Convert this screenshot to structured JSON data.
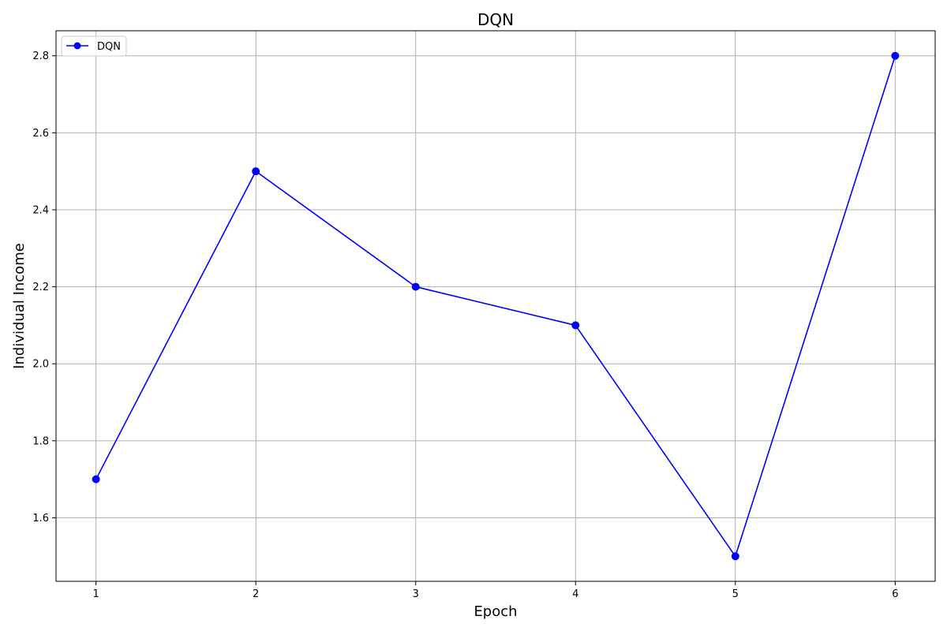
{
  "chart_data": {
    "type": "line",
    "title": "DQN",
    "xlabel": "Epoch",
    "ylabel": "Individual Income",
    "x": [
      1,
      2,
      3,
      4,
      5,
      6
    ],
    "series": [
      {
        "name": "DQN",
        "values": [
          1.7,
          2.5,
          2.2,
          2.1,
          1.5,
          2.8
        ],
        "color": "#0000ff",
        "marker": "circle"
      }
    ],
    "xticks": [
      "1",
      "2",
      "3",
      "4",
      "5",
      "6"
    ],
    "yticks": [
      "1.6",
      "1.8",
      "2.0",
      "2.2",
      "2.4",
      "2.6",
      "2.8"
    ],
    "xlim": [
      0.75,
      6.25
    ],
    "ylim": [
      1.435,
      2.865
    ],
    "grid": true,
    "legend_position": "top-left"
  }
}
